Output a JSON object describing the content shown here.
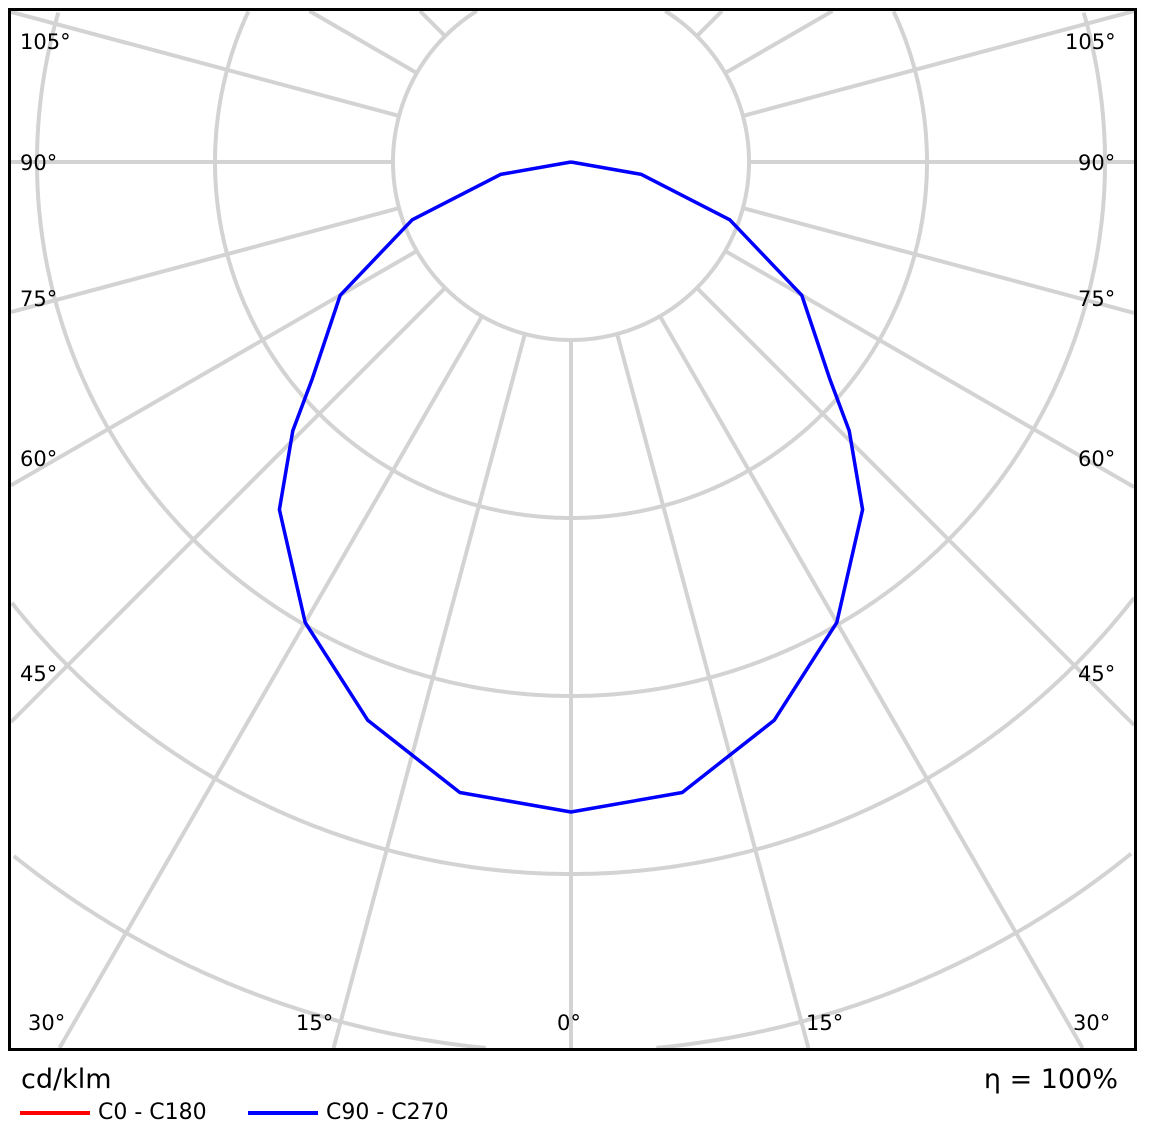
{
  "chart_data": {
    "type": "polar",
    "unit_label": "cd/klm",
    "efficiency_label": "η = 100%",
    "angle_labels": {
      "left": [
        "105°",
        "90°",
        "75°",
        "60°",
        "45°",
        "30°"
      ],
      "right": [
        "105°",
        "90°",
        "75°",
        "60°",
        "45°",
        "30°"
      ],
      "bottom": [
        "30°",
        "15°",
        "0°",
        "15°",
        "30°"
      ]
    },
    "gamma_deg": [
      0,
      10,
      20,
      30,
      40,
      46,
      50,
      60,
      70,
      80,
      90
    ],
    "series": [
      {
        "name": "C0 - C180",
        "color": "#ff0000",
        "relative_intensity": [
          1.0,
          0.985,
          0.914,
          0.818,
          0.698,
          0.595,
          0.52,
          0.41,
          0.26,
          0.11,
          0.0
        ]
      },
      {
        "name": "C90 - C270",
        "color": "#0000ff",
        "relative_intensity": [
          1.0,
          0.985,
          0.914,
          0.818,
          0.698,
          0.595,
          0.52,
          0.41,
          0.26,
          0.11,
          0.0
        ]
      }
    ],
    "grid": true,
    "legend": "bottom-left"
  }
}
